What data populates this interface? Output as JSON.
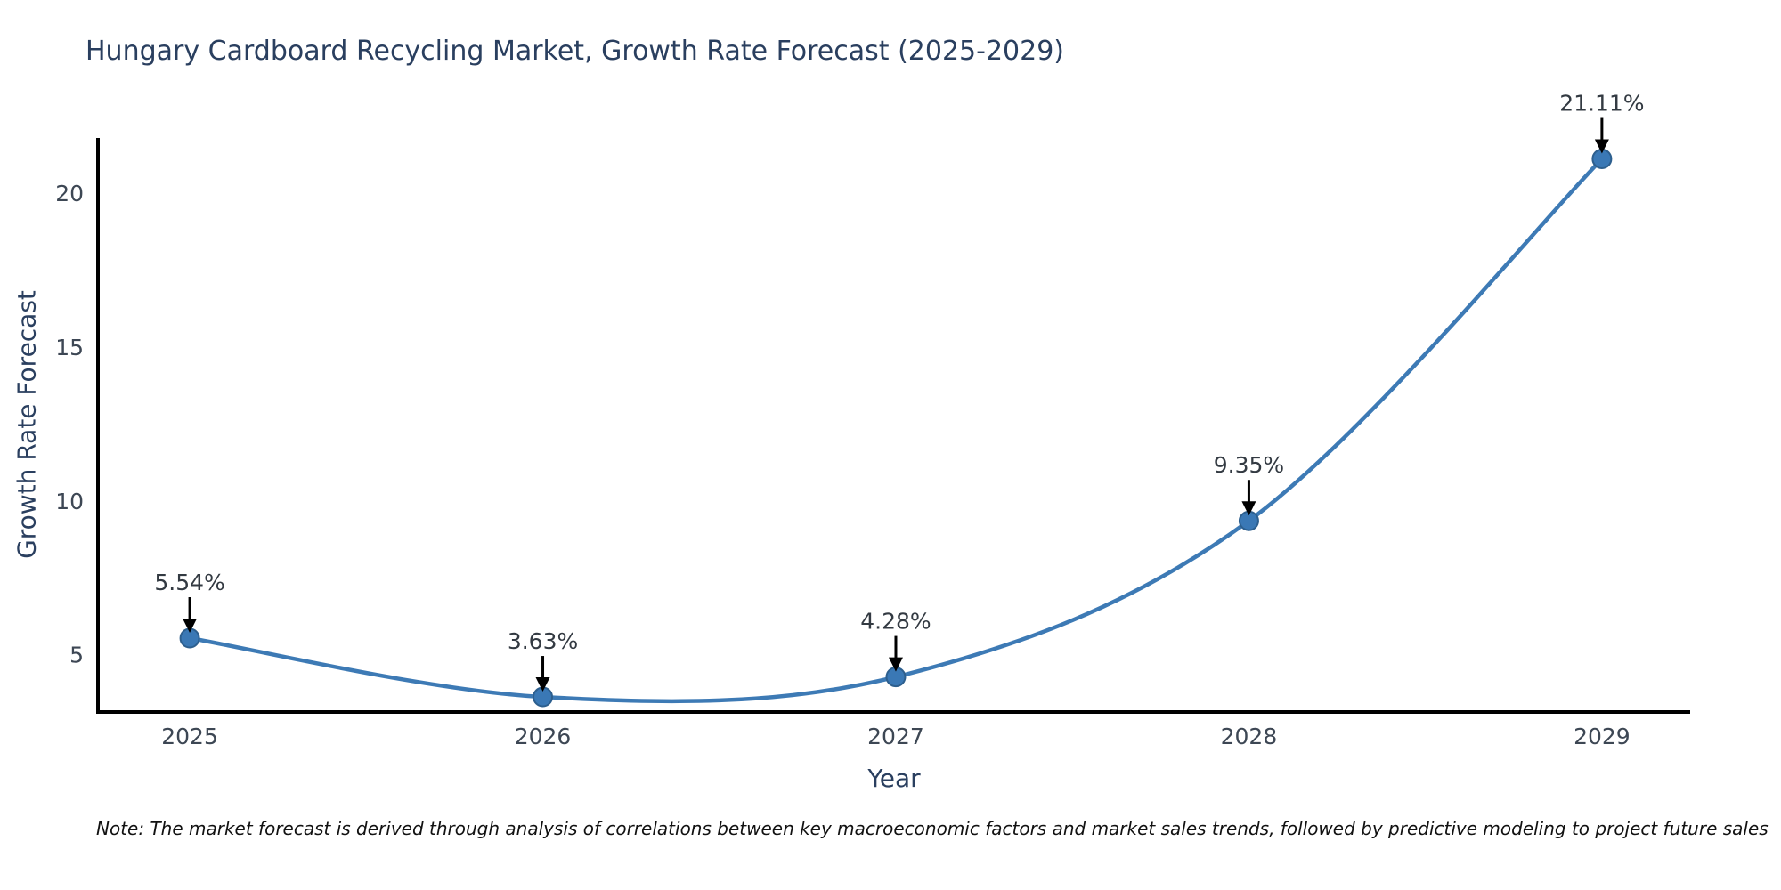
{
  "chart": {
    "title": "Hungary Cardboard Recycling Market, Growth Rate Forecast (2025-2029)",
    "x_axis_title": "Year",
    "y_axis_title": "Growth Rate Forecast",
    "note": "Note: The market forecast is derived through analysis of correlations between key macroeconomic factors and market sales trends, followed by predictive modeling to project future sales"
  },
  "chart_data": {
    "type": "line",
    "title": "Hungary Cardboard Recycling Market, Growth Rate Forecast (2025-2029)",
    "xlabel": "Year",
    "ylabel": "Growth Rate Forecast",
    "x": [
      2025,
      2026,
      2027,
      2028,
      2029
    ],
    "series": [
      {
        "name": "Growth Rate Forecast",
        "values": [
          5.54,
          3.63,
          4.28,
          9.35,
          21.11
        ]
      }
    ],
    "point_labels": [
      "5.54%",
      "3.63%",
      "4.28%",
      "9.35%",
      "21.11%"
    ],
    "line_shape": "spline",
    "markers": true,
    "grid": false,
    "legend": false,
    "xlim": [
      2024.74,
      2029.25
    ],
    "ylim": [
      3.14,
      21.79
    ],
    "yticks": [
      5,
      10,
      15,
      20
    ],
    "xticks": [
      "2025",
      "2026",
      "2027",
      "2028",
      "2029"
    ],
    "colors": {
      "line": "#3d7ab5",
      "marker_fill": "#3a78b5",
      "marker_edge": "#2d5f8e",
      "arrow": "#000000",
      "axis": "#000000",
      "title_text": "#2a3f5f",
      "tick_text": "#3d4754",
      "annotation_text": "#333a42"
    }
  }
}
